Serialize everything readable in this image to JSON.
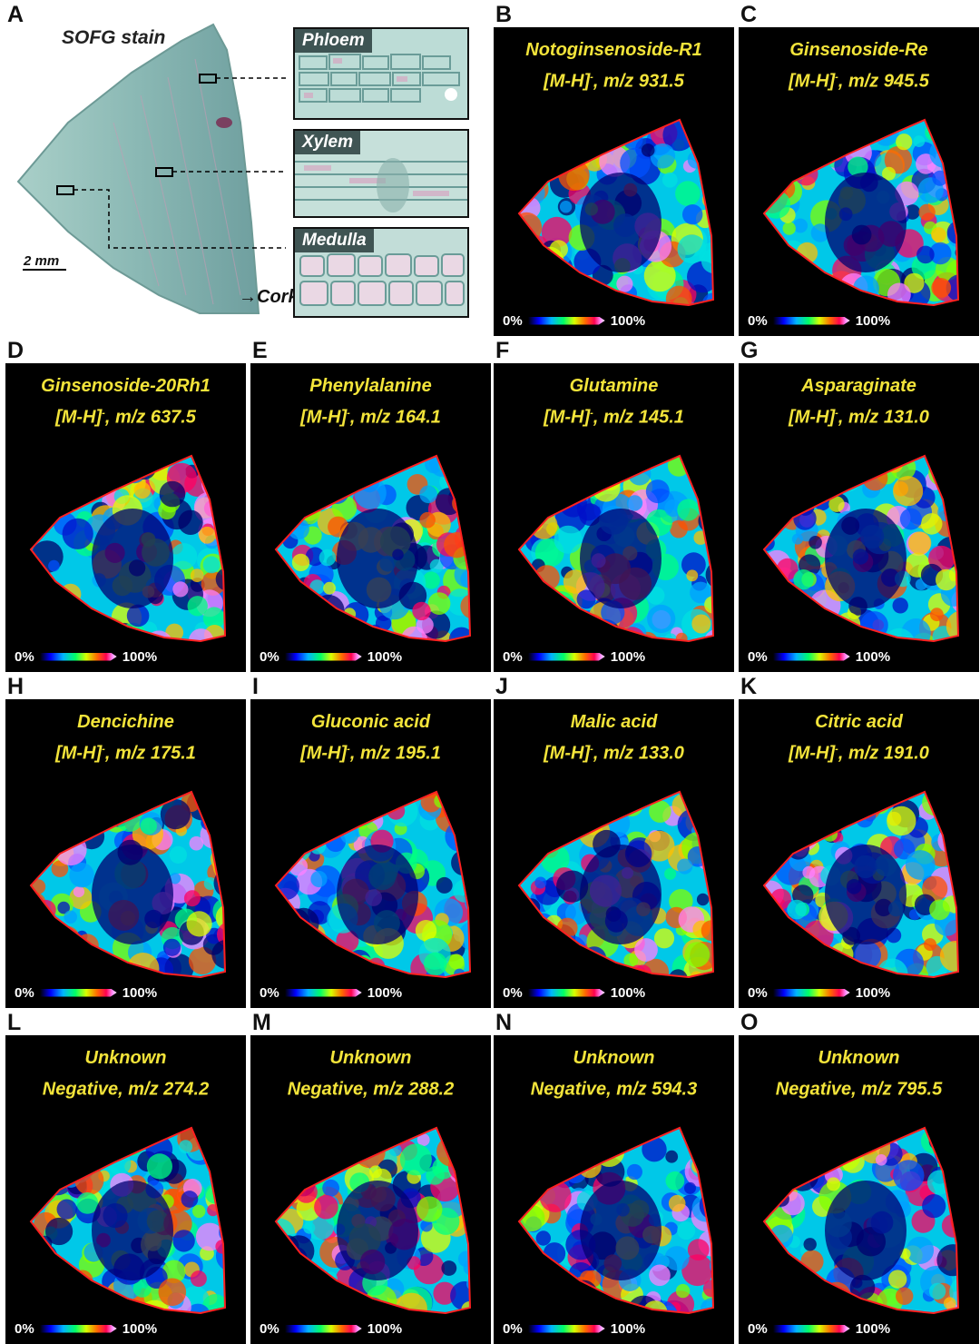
{
  "figure": {
    "panel_a": {
      "letter": "A",
      "stain": "SOFG stain",
      "scale_bar": "2 mm",
      "insets": [
        {
          "label": "Phloem"
        },
        {
          "label": "Xylem"
        },
        {
          "label": "Medulla"
        }
      ],
      "cork_label": "Cork"
    },
    "scale_min": "0%",
    "scale_max": "100%",
    "panels": [
      {
        "letter": "B",
        "name": "Notoginsenoside-R1",
        "ion": "[M-H]",
        "sup": "-",
        "mz": ", m/z 931.5"
      },
      {
        "letter": "C",
        "name": "Ginsenoside-Re",
        "ion": "[M-H]",
        "sup": "-",
        "mz": ", m/z 945.5"
      },
      {
        "letter": "D",
        "name": "Ginsenoside-20Rh1",
        "ion": "[M-H]",
        "sup": "-",
        "mz": ", m/z 637.5"
      },
      {
        "letter": "E",
        "name": "Phenylalanine",
        "ion": "[M-H]",
        "sup": "-",
        "mz": ", m/z 164.1"
      },
      {
        "letter": "F",
        "name": "Glutamine",
        "ion": "[M-H]",
        "sup": "-",
        "mz": ", m/z 145.1"
      },
      {
        "letter": "G",
        "name": "Asparaginate",
        "ion": "[M-H]",
        "sup": "-",
        "mz": ", m/z 131.0"
      },
      {
        "letter": "H",
        "name": "Dencichine",
        "ion": "[M-H]",
        "sup": "-",
        "mz": ", m/z 175.1"
      },
      {
        "letter": "I",
        "name": "Gluconic acid",
        "ion": "[M-H]",
        "sup": "-",
        "mz": ", m/z 195.1"
      },
      {
        "letter": "J",
        "name": "Malic acid",
        "ion": "[M-H]",
        "sup": "-",
        "mz": ", m/z 133.0"
      },
      {
        "letter": "K",
        "name": "Citric acid",
        "ion": "[M-H]",
        "sup": "-",
        "mz": ", m/z 191.0"
      },
      {
        "letter": "L",
        "name": "Unknown",
        "ion": "Negative",
        "sup": "",
        "mz": ", m/z 274.2"
      },
      {
        "letter": "M",
        "name": "Unknown",
        "ion": "Negative",
        "sup": "",
        "mz": ", m/z 288.2"
      },
      {
        "letter": "N",
        "name": "Unknown",
        "ion": "Negative",
        "sup": "",
        "mz": ", m/z 594.3"
      },
      {
        "letter": "O",
        "name": "Unknown",
        "ion": "Negative",
        "sup": "",
        "mz": ", m/z 795.5"
      }
    ]
  }
}
